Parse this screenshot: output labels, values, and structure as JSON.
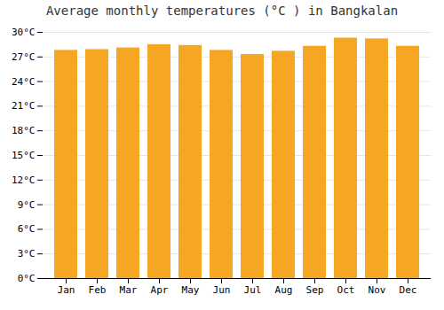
{
  "chart_data": {
    "type": "bar",
    "title": "Average monthly temperatures (°C ) in Bangkalan",
    "categories": [
      "Jan",
      "Feb",
      "Mar",
      "Apr",
      "May",
      "Jun",
      "Jul",
      "Aug",
      "Sep",
      "Oct",
      "Nov",
      "Dec"
    ],
    "values": [
      27.8,
      27.9,
      28.1,
      28.5,
      28.4,
      27.8,
      27.3,
      27.7,
      28.3,
      29.3,
      29.2,
      28.3
    ],
    "color": "#F5A623",
    "ylim": [
      0,
      30
    ],
    "yticks": [
      {
        "value": 0,
        "label": "0°C"
      },
      {
        "value": 3,
        "label": "3°C"
      },
      {
        "value": 6,
        "label": "6°C"
      },
      {
        "value": 9,
        "label": "9°C"
      },
      {
        "value": 12,
        "label": "12°C"
      },
      {
        "value": 15,
        "label": "15°C"
      },
      {
        "value": 18,
        "label": "18°C"
      },
      {
        "value": 21,
        "label": "21°C"
      },
      {
        "value": 24,
        "label": "24°C"
      },
      {
        "value": 27,
        "label": "27°C"
      },
      {
        "value": 30,
        "label": "30°C"
      }
    ],
    "grid": true
  }
}
